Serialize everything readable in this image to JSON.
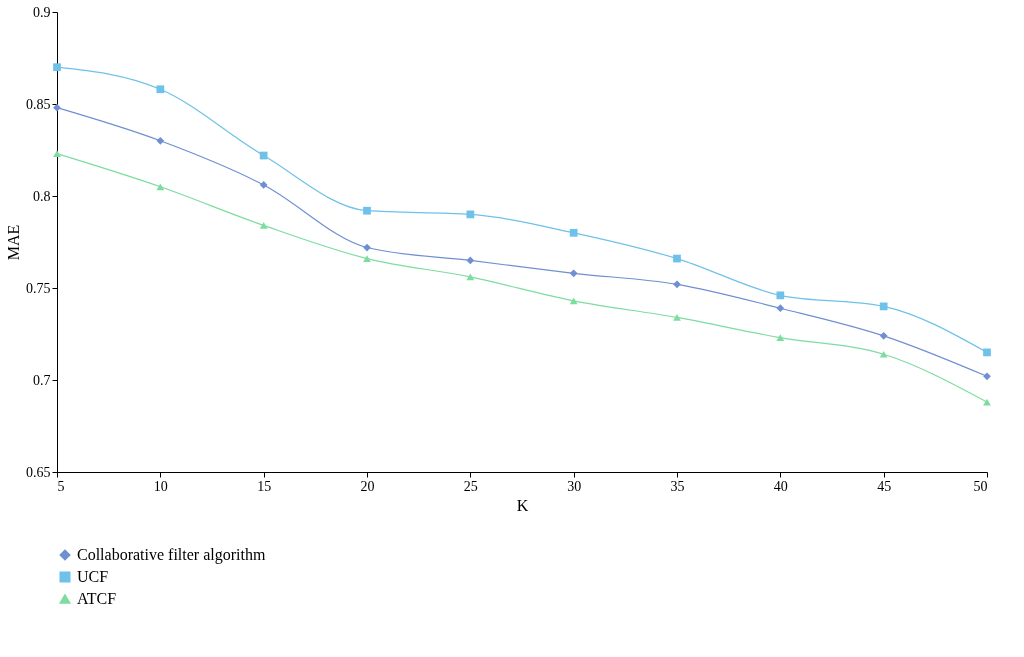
{
  "chart_data": {
    "type": "line",
    "xlabel": "K",
    "ylabel": "MAE",
    "x": [
      5,
      10,
      15,
      20,
      25,
      30,
      35,
      40,
      45,
      50
    ],
    "xlim": [
      5,
      50
    ],
    "xticks": [
      5,
      10,
      15,
      20,
      25,
      30,
      35,
      40,
      45,
      50
    ],
    "ylim": [
      0.65,
      0.9
    ],
    "yticks": [
      0.65,
      0.7,
      0.75,
      0.8,
      0.85,
      0.9
    ],
    "grid": false,
    "legend": "bottom left",
    "line_style": "solid",
    "series": [
      {
        "name": "Collaborative filter algorithm",
        "color": "#6f8fd2",
        "marker": "diamond",
        "values": [
          0.848,
          0.83,
          0.806,
          0.772,
          0.765,
          0.758,
          0.752,
          0.739,
          0.724,
          0.702
        ]
      },
      {
        "name": "UCF",
        "color": "#6ec1e8",
        "marker": "square",
        "values": [
          0.87,
          0.858,
          0.822,
          0.792,
          0.79,
          0.78,
          0.766,
          0.746,
          0.74,
          0.715
        ]
      },
      {
        "name": "ATCF",
        "color": "#7ddca0",
        "marker": "triangle",
        "values": [
          0.823,
          0.805,
          0.784,
          0.766,
          0.756,
          0.743,
          0.734,
          0.723,
          0.714,
          0.688
        ]
      }
    ]
  }
}
